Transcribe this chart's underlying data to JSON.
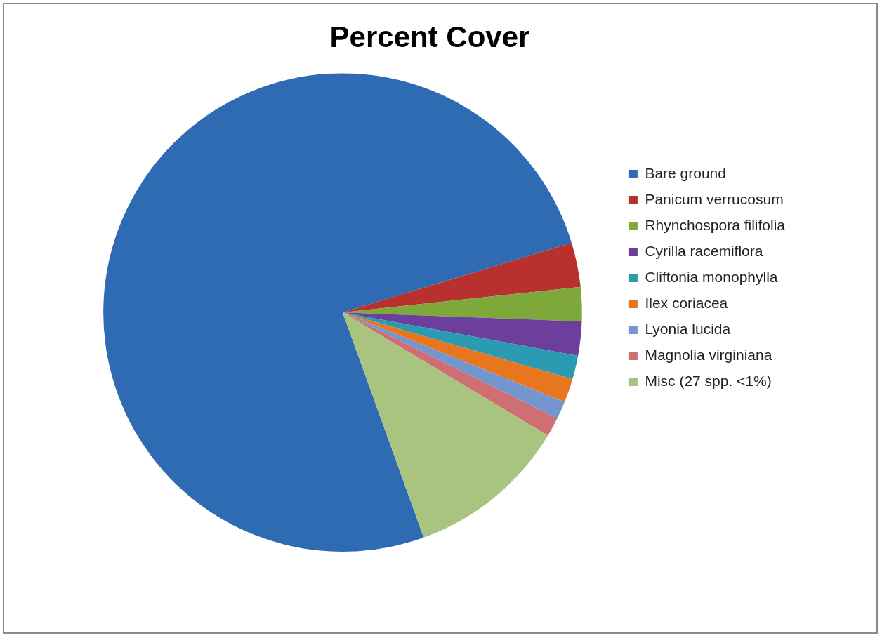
{
  "chart_data": {
    "type": "pie",
    "title": "Percent Cover",
    "categories": [
      "Bare ground",
      "Panicum verrucosum",
      "Rhynchospora filifolia",
      "Cyrilla racemiflora",
      "Cliftonia monophylla",
      "Ilex coriacea",
      "Lyonia lucida",
      "Magnolia virginiana",
      "Misc (27 spp. <1%)"
    ],
    "values": [
      75.8,
      3.0,
      2.3,
      2.3,
      1.6,
      1.6,
      1.2,
      1.3,
      10.9
    ],
    "colors": [
      "#2f6bb3",
      "#b8312f",
      "#7fa83a",
      "#6d3f9c",
      "#2a9bb0",
      "#e8761e",
      "#7396cf",
      "#cf6f73",
      "#a9c47f"
    ],
    "legend": "right"
  }
}
